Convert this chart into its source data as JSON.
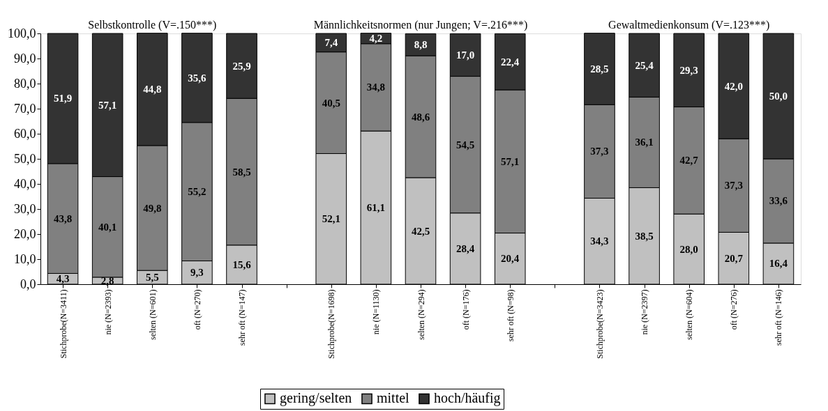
{
  "chart_data": {
    "type": "bar",
    "stacked": true,
    "categories": [
      "Stichprobe(N=3411)",
      "nie (N=2393)",
      "selten (N=601)",
      "oft (N=270)",
      "sehr oft (N=147)",
      null,
      "Stichprobe(N=1698)",
      "nie (N=1130)",
      "selten (N=294)",
      "oft (N=176)",
      "sehr oft (N=98)",
      null,
      "Stichprobe(N=3423)",
      "nie (N=2397)",
      "selten (N=604)",
      "oft (N=276)",
      "sehr oft (N=146)"
    ],
    "series": [
      {
        "name": "gering/selten",
        "color": "#c0c0c0",
        "values": [
          4.3,
          2.8,
          5.5,
          9.3,
          15.6,
          null,
          52.1,
          61.1,
          42.5,
          28.4,
          20.4,
          null,
          34.3,
          38.5,
          28.0,
          20.7,
          16.4
        ],
        "value_labels": [
          "4,3",
          "2,8",
          "5,5",
          "9,3",
          "15,6",
          null,
          "52,1",
          "61,1",
          "42,5",
          "28,4",
          "20,4",
          null,
          "34,3",
          "38,5",
          "28,0",
          "20,7",
          "16,4"
        ]
      },
      {
        "name": "mittel",
        "color": "#808080",
        "values": [
          43.8,
          40.1,
          49.8,
          55.2,
          58.5,
          null,
          40.5,
          34.8,
          48.6,
          54.5,
          57.1,
          null,
          37.3,
          36.1,
          42.7,
          37.3,
          33.6
        ],
        "value_labels": [
          "43,8",
          "40,1",
          "49,8",
          "55,2",
          "58,5",
          null,
          "40,5",
          "34,8",
          "48,6",
          "54,5",
          "57,1",
          null,
          "37,3",
          "36,1",
          "42,7",
          "37,3",
          "33,6"
        ]
      },
      {
        "name": "hoch/häufig",
        "color": "#333333",
        "values": [
          51.9,
          57.1,
          44.8,
          35.6,
          25.9,
          null,
          7.4,
          4.2,
          8.8,
          17.0,
          22.4,
          null,
          28.5,
          25.4,
          29.3,
          42.0,
          50.0
        ],
        "value_labels": [
          "51,9",
          "57,1",
          "44,8",
          "35,6",
          "25,9",
          null,
          "7,4",
          "4,2",
          "8,8",
          "17,0",
          "22,4",
          null,
          "28,5",
          "25,4",
          "29,3",
          "42,0",
          "50,0"
        ]
      }
    ],
    "ylim": [
      0,
      100
    ],
    "yticks": [
      {
        "value": 0,
        "label": "0,0"
      },
      {
        "value": 10,
        "label": "10,0"
      },
      {
        "value": 20,
        "label": "20,0"
      },
      {
        "value": 30,
        "label": "30,0"
      },
      {
        "value": 40,
        "label": "40,0"
      },
      {
        "value": 50,
        "label": "50,0"
      },
      {
        "value": 60,
        "label": "60,0"
      },
      {
        "value": 70,
        "label": "70,0"
      },
      {
        "value": 80,
        "label": "80,0"
      },
      {
        "value": 90,
        "label": "90,0"
      },
      {
        "value": 100,
        "label": "100,0"
      }
    ],
    "annotations": [
      "Selbstkontrolle (V=.150***)",
      "Männlichkeitsnormen (nur Jungen; V=.216***)",
      "Gewaltmedienkonsum (V=.123***)"
    ],
    "grid": false,
    "legend": "bottom"
  }
}
